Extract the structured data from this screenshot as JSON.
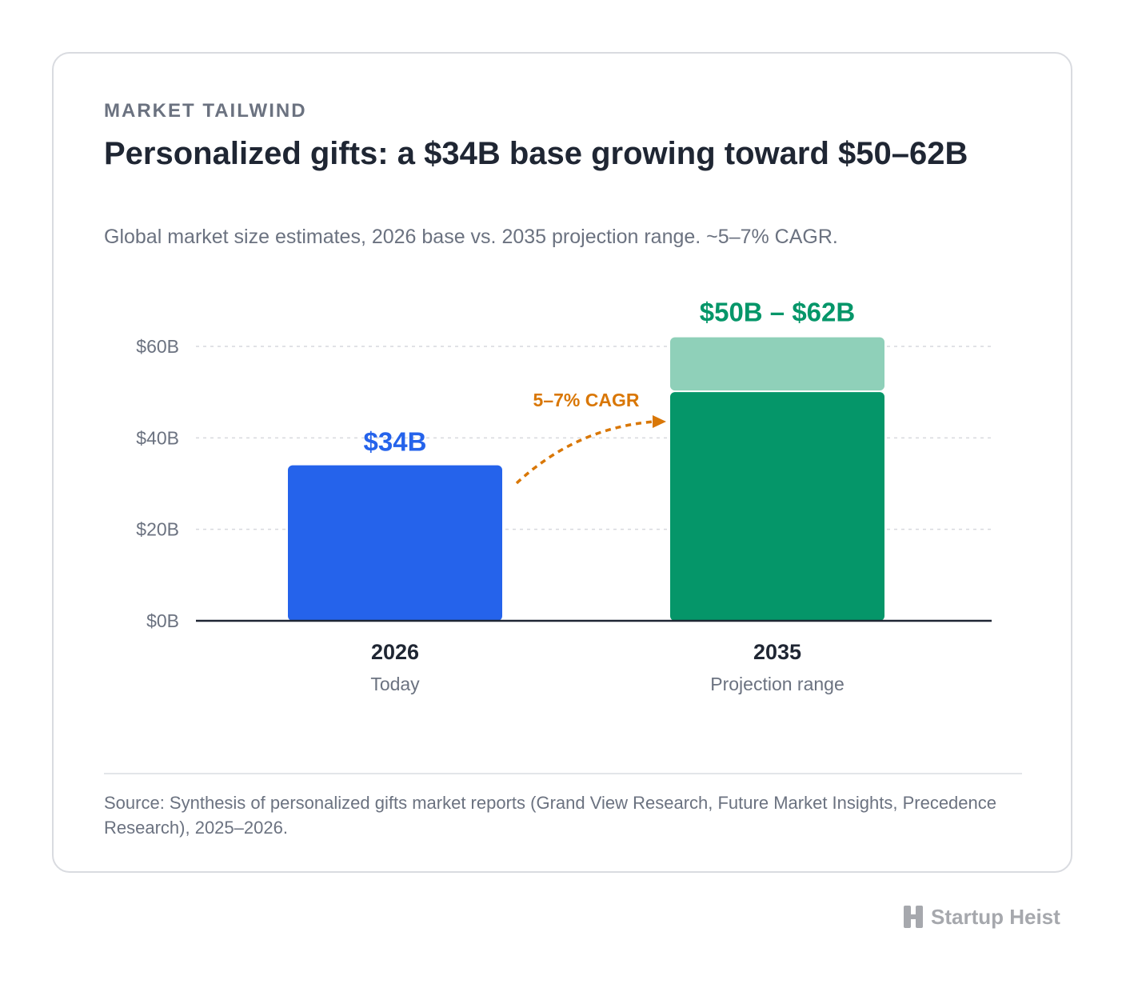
{
  "header": {
    "eyebrow": "MARKET TAILWIND",
    "title": "Personalized gifts: a $34B base growing toward $50–62B",
    "subtitle": "Global market size estimates, 2026 base vs. 2035 projection range. ~5–7% CAGR."
  },
  "chart_data": {
    "type": "bar",
    "categories": [
      "2026",
      "2035"
    ],
    "category_sublabels": [
      "Today",
      "Projection range"
    ],
    "series": [
      {
        "values": [
          34,
          50
        ]
      },
      {
        "values": [
          0,
          12
        ]
      }
    ],
    "bar_ranges": [
      {
        "category": "2026",
        "low": 34,
        "high": 34
      },
      {
        "category": "2035",
        "low": 50,
        "high": 62
      }
    ],
    "data_labels": [
      "$34B",
      "$50B – $62B"
    ],
    "annotation": "5–7% CAGR",
    "yticks": [
      0,
      20,
      40,
      60
    ],
    "ytick_labels": [
      "$0B",
      "$20B",
      "$40B",
      "$60B"
    ],
    "ylim": [
      0,
      60
    ],
    "grid": true,
    "legend": "none",
    "colors": {
      "base_bar": "#2563eb",
      "projection_low": "#059669",
      "projection_high": "#8fd0b9",
      "annotation": "#d97706",
      "axis": "#1f2633",
      "grid": "#d7d9de",
      "tick_text": "#6b7280",
      "category_text": "#1f2633"
    }
  },
  "footer": {
    "source": "Source: Synthesis of personalized gifts market reports (Grand View Research, Future Market Insights, Precedence Research), 2025–2026."
  },
  "brand": {
    "name": "Startup Heist",
    "icon": "h-logo-icon",
    "color": "#a6a8ad"
  }
}
